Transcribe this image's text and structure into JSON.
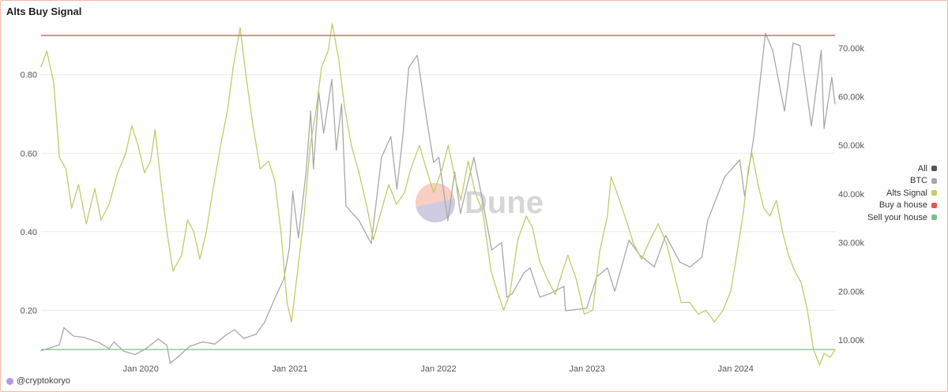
{
  "chart_data": {
    "type": "line",
    "title": "Alts Buy Signal",
    "x_tick_labels": [
      "Jan 2020",
      "Jan 2021",
      "Jan 2022",
      "Jan 2023",
      "Jan 2024"
    ],
    "y_left": {
      "ticks": [
        0.2,
        0.4,
        0.6,
        0.8
      ],
      "tick_labels": [
        "0.20",
        "0.40",
        "0.60",
        "0.80"
      ],
      "range": [
        0.05,
        0.93
      ]
    },
    "y_right": {
      "ticks": [
        10000,
        20000,
        30000,
        40000,
        50000,
        60000,
        70000
      ],
      "tick_labels": [
        "10.00k",
        "20.00k",
        "30.00k",
        "40.00k",
        "50.00k",
        "60.00k",
        "70.00k"
      ],
      "range": [
        4000,
        75000
      ]
    },
    "x_range": [
      "2019-05-01",
      "2024-09-01"
    ],
    "grid": true,
    "legend_position": "right",
    "series": [
      {
        "name": "BTC",
        "axis": "right",
        "color": "#a8a8a8",
        "points": [
          [
            "2019-05-01",
            7800
          ],
          [
            "2019-06-15",
            9000
          ],
          [
            "2019-06-26",
            12500
          ],
          [
            "2019-07-20",
            10800
          ],
          [
            "2019-08-15",
            10500
          ],
          [
            "2019-09-20",
            9500
          ],
          [
            "2019-10-15",
            8200
          ],
          [
            "2019-10-27",
            9600
          ],
          [
            "2019-11-20",
            7700
          ],
          [
            "2019-12-18",
            7000
          ],
          [
            "2020-01-15",
            8300
          ],
          [
            "2020-02-13",
            10200
          ],
          [
            "2020-03-05",
            8900
          ],
          [
            "2020-03-13",
            5200
          ],
          [
            "2020-04-01",
            6500
          ],
          [
            "2020-04-30",
            8700
          ],
          [
            "2020-06-01",
            9600
          ],
          [
            "2020-07-01",
            9150
          ],
          [
            "2020-07-28",
            11000
          ],
          [
            "2020-08-18",
            12100
          ],
          [
            "2020-09-10",
            10300
          ],
          [
            "2020-10-10",
            11200
          ],
          [
            "2020-10-30",
            13500
          ],
          [
            "2020-11-25",
            18500
          ],
          [
            "2020-12-17",
            22500
          ],
          [
            "2020-12-31",
            29000
          ],
          [
            "2021-01-08",
            40500
          ],
          [
            "2021-01-22",
            31000
          ],
          [
            "2021-02-10",
            44500
          ],
          [
            "2021-02-21",
            57000
          ],
          [
            "2021-02-28",
            45200
          ],
          [
            "2021-03-13",
            61000
          ],
          [
            "2021-03-25",
            52500
          ],
          [
            "2021-04-14",
            63500
          ],
          [
            "2021-04-25",
            49000
          ],
          [
            "2021-05-08",
            58500
          ],
          [
            "2021-05-19",
            37500
          ],
          [
            "2021-06-20",
            34500
          ],
          [
            "2021-07-20",
            29800
          ],
          [
            "2021-08-14",
            47500
          ],
          [
            "2021-09-06",
            51800
          ],
          [
            "2021-09-21",
            41000
          ],
          [
            "2021-10-05",
            51500
          ],
          [
            "2021-10-20",
            66000
          ],
          [
            "2021-11-10",
            68500
          ],
          [
            "2021-11-30",
            57000
          ],
          [
            "2021-12-20",
            46500
          ],
          [
            "2022-01-02",
            47500
          ],
          [
            "2022-01-24",
            34500
          ],
          [
            "2022-02-10",
            44500
          ],
          [
            "2022-02-24",
            36000
          ],
          [
            "2022-03-29",
            47500
          ],
          [
            "2022-04-15",
            40500
          ],
          [
            "2022-05-12",
            28500
          ],
          [
            "2022-06-05",
            30000
          ],
          [
            "2022-06-18",
            18800
          ],
          [
            "2022-07-01",
            19500
          ],
          [
            "2022-07-30",
            23800
          ],
          [
            "2022-08-14",
            24800
          ],
          [
            "2022-09-07",
            18800
          ],
          [
            "2022-10-01",
            19500
          ],
          [
            "2022-11-05",
            21000
          ],
          [
            "2022-11-09",
            16000
          ],
          [
            "2022-12-31",
            16500
          ],
          [
            "2023-01-25",
            23000
          ],
          [
            "2023-02-20",
            24800
          ],
          [
            "2023-03-10",
            20000
          ],
          [
            "2023-04-14",
            30500
          ],
          [
            "2023-05-10",
            27500
          ],
          [
            "2023-06-15",
            25000
          ],
          [
            "2023-07-13",
            31500
          ],
          [
            "2023-08-17",
            26000
          ],
          [
            "2023-09-11",
            25000
          ],
          [
            "2023-10-10",
            27000
          ],
          [
            "2023-10-24",
            34500
          ],
          [
            "2023-12-05",
            43500
          ],
          [
            "2024-01-11",
            47000
          ],
          [
            "2024-01-23",
            39500
          ],
          [
            "2024-02-15",
            52000
          ],
          [
            "2024-03-14",
            73000
          ],
          [
            "2024-04-01",
            69500
          ],
          [
            "2024-04-30",
            57000
          ],
          [
            "2024-05-21",
            71000
          ],
          [
            "2024-06-07",
            70500
          ],
          [
            "2024-07-05",
            54000
          ],
          [
            "2024-07-29",
            69500
          ],
          [
            "2024-08-05",
            53500
          ],
          [
            "2024-08-24",
            64000
          ],
          [
            "2024-09-01",
            58500
          ]
        ]
      },
      {
        "name": "Alts Signal",
        "axis": "left",
        "color": "#c3ca6a",
        "points": [
          [
            "2019-05-01",
            0.82
          ],
          [
            "2019-05-15",
            0.86
          ],
          [
            "2019-06-01",
            0.78
          ],
          [
            "2019-06-15",
            0.59
          ],
          [
            "2019-07-01",
            0.56
          ],
          [
            "2019-07-15",
            0.46
          ],
          [
            "2019-08-01",
            0.52
          ],
          [
            "2019-08-20",
            0.42
          ],
          [
            "2019-09-10",
            0.51
          ],
          [
            "2019-09-25",
            0.43
          ],
          [
            "2019-10-15",
            0.47
          ],
          [
            "2019-11-05",
            0.55
          ],
          [
            "2019-11-25",
            0.6
          ],
          [
            "2019-12-10",
            0.67
          ],
          [
            "2019-12-25",
            0.62
          ],
          [
            "2020-01-10",
            0.55
          ],
          [
            "2020-01-25",
            0.58
          ],
          [
            "2020-02-05",
            0.66
          ],
          [
            "2020-02-20",
            0.52
          ],
          [
            "2020-03-05",
            0.4
          ],
          [
            "2020-03-20",
            0.3
          ],
          [
            "2020-04-10",
            0.34
          ],
          [
            "2020-04-25",
            0.43
          ],
          [
            "2020-05-10",
            0.4
          ],
          [
            "2020-05-25",
            0.33
          ],
          [
            "2020-06-10",
            0.4
          ],
          [
            "2020-06-25",
            0.5
          ],
          [
            "2020-07-15",
            0.62
          ],
          [
            "2020-08-01",
            0.71
          ],
          [
            "2020-08-15",
            0.82
          ],
          [
            "2020-09-01",
            0.92
          ],
          [
            "2020-09-15",
            0.8
          ],
          [
            "2020-10-01",
            0.68
          ],
          [
            "2020-10-20",
            0.56
          ],
          [
            "2020-11-10",
            0.58
          ],
          [
            "2020-11-25",
            0.53
          ],
          [
            "2020-12-10",
            0.4
          ],
          [
            "2020-12-25",
            0.22
          ],
          [
            "2021-01-05",
            0.17
          ],
          [
            "2021-01-20",
            0.3
          ],
          [
            "2021-02-05",
            0.44
          ],
          [
            "2021-02-20",
            0.62
          ],
          [
            "2021-03-05",
            0.7
          ],
          [
            "2021-03-20",
            0.82
          ],
          [
            "2021-04-05",
            0.86
          ],
          [
            "2021-04-15",
            0.93
          ],
          [
            "2021-05-01",
            0.84
          ],
          [
            "2021-05-15",
            0.72
          ],
          [
            "2021-06-01",
            0.62
          ],
          [
            "2021-06-20",
            0.55
          ],
          [
            "2021-07-10",
            0.46
          ],
          [
            "2021-07-25",
            0.38
          ],
          [
            "2021-08-10",
            0.44
          ],
          [
            "2021-09-01",
            0.52
          ],
          [
            "2021-09-20",
            0.47
          ],
          [
            "2021-10-10",
            0.5
          ],
          [
            "2021-10-25",
            0.56
          ],
          [
            "2021-11-15",
            0.62
          ],
          [
            "2021-12-05",
            0.55
          ],
          [
            "2021-12-20",
            0.5
          ],
          [
            "2022-01-10",
            0.56
          ],
          [
            "2022-01-25",
            0.62
          ],
          [
            "2022-02-10",
            0.54
          ],
          [
            "2022-02-25",
            0.48
          ],
          [
            "2022-03-15",
            0.58
          ],
          [
            "2022-04-01",
            0.5
          ],
          [
            "2022-04-20",
            0.45
          ],
          [
            "2022-05-10",
            0.3
          ],
          [
            "2022-05-25",
            0.25
          ],
          [
            "2022-06-10",
            0.2
          ],
          [
            "2022-06-25",
            0.24
          ],
          [
            "2022-07-15",
            0.38
          ],
          [
            "2022-08-05",
            0.44
          ],
          [
            "2022-08-20",
            0.41
          ],
          [
            "2022-09-05",
            0.33
          ],
          [
            "2022-09-25",
            0.28
          ],
          [
            "2022-10-15",
            0.24
          ],
          [
            "2022-11-05",
            0.31
          ],
          [
            "2022-11-15",
            0.34
          ],
          [
            "2022-12-05",
            0.28
          ],
          [
            "2022-12-25",
            0.19
          ],
          [
            "2023-01-15",
            0.2
          ],
          [
            "2023-02-01",
            0.35
          ],
          [
            "2023-02-20",
            0.44
          ],
          [
            "2023-03-01",
            0.54
          ],
          [
            "2023-03-15",
            0.5
          ],
          [
            "2023-04-10",
            0.42
          ],
          [
            "2023-04-25",
            0.37
          ],
          [
            "2023-05-15",
            0.33
          ],
          [
            "2023-06-05",
            0.38
          ],
          [
            "2023-06-25",
            0.42
          ],
          [
            "2023-07-15",
            0.37
          ],
          [
            "2023-08-01",
            0.3
          ],
          [
            "2023-08-20",
            0.22
          ],
          [
            "2023-09-10",
            0.22
          ],
          [
            "2023-10-01",
            0.19
          ],
          [
            "2023-10-20",
            0.2
          ],
          [
            "2023-11-10",
            0.17
          ],
          [
            "2023-12-01",
            0.2
          ],
          [
            "2023-12-20",
            0.25
          ],
          [
            "2024-01-05",
            0.35
          ],
          [
            "2024-01-20",
            0.45
          ],
          [
            "2024-02-01",
            0.56
          ],
          [
            "2024-02-10",
            0.6
          ],
          [
            "2024-02-25",
            0.52
          ],
          [
            "2024-03-10",
            0.46
          ],
          [
            "2024-03-25",
            0.44
          ],
          [
            "2024-04-10",
            0.48
          ],
          [
            "2024-04-25",
            0.4
          ],
          [
            "2024-05-10",
            0.34
          ],
          [
            "2024-05-25",
            0.3
          ],
          [
            "2024-06-10",
            0.27
          ],
          [
            "2024-06-25",
            0.2
          ],
          [
            "2024-07-10",
            0.1
          ],
          [
            "2024-07-25",
            0.06
          ],
          [
            "2024-08-05",
            0.09
          ],
          [
            "2024-08-20",
            0.08
          ],
          [
            "2024-09-01",
            0.1
          ]
        ]
      },
      {
        "name": "Buy a house",
        "axis": "left",
        "color": "#e05a52",
        "value": 0.9
      },
      {
        "name": "Sell your house",
        "axis": "left",
        "color": "#7fbf87",
        "value": 0.1
      }
    ]
  },
  "legend": [
    {
      "label": "All",
      "color": "#555555"
    },
    {
      "label": "BTC",
      "color": "#a8a8a8"
    },
    {
      "label": "Alts Signal",
      "color": "#c3ca6a"
    },
    {
      "label": "Buy a house",
      "color": "#e05a52"
    },
    {
      "label": "Sell your house",
      "color": "#7fbf87"
    }
  ],
  "watermark": "Dune",
  "footer": {
    "author": "@cryptokoryo"
  }
}
